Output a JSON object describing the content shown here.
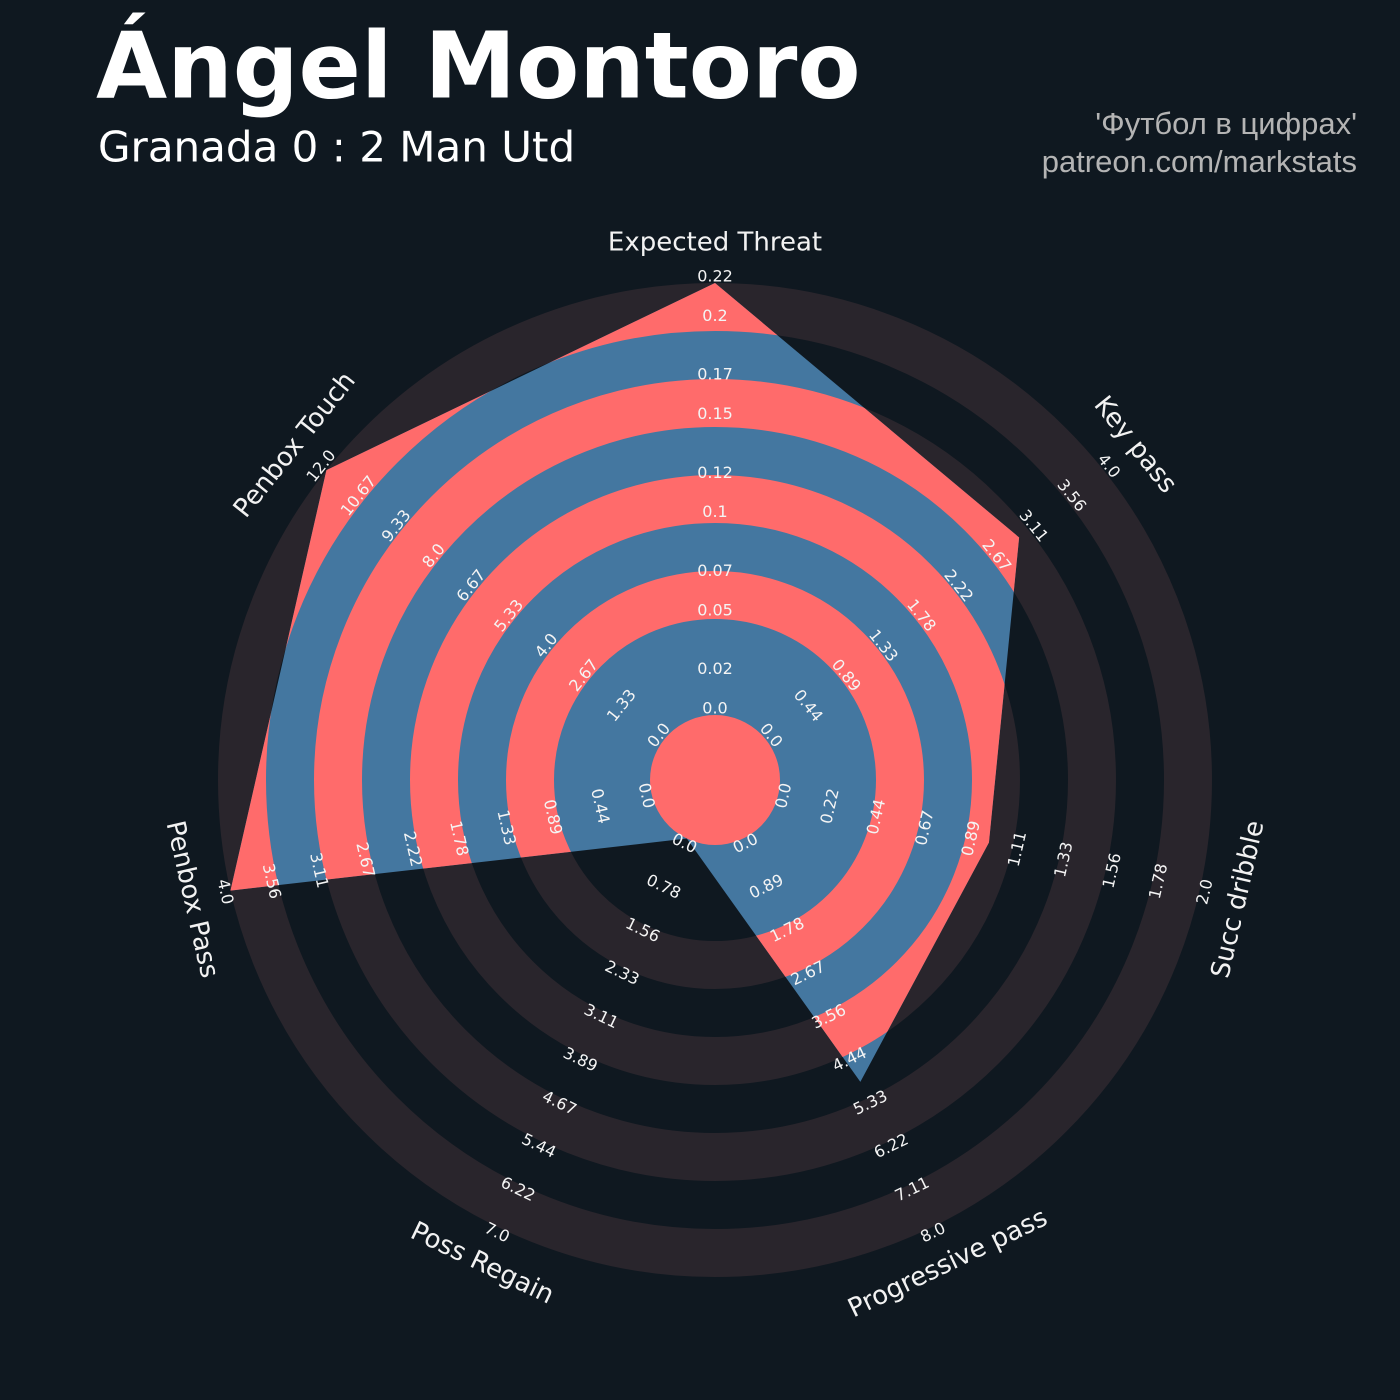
{
  "chart_data": {
    "type": "radar",
    "title": "Ángel Montoro",
    "subtitle": "Granada 0 : 2 Man Utd",
    "credits": [
      "'Футбол в цифрах'",
      "patreon.com/markstats"
    ],
    "categories": [
      "Expected Threat",
      "Key pass",
      "Succ dribble",
      "Progressive pass",
      "Poss Regain",
      "Penbox Pass",
      "Penbox Touch"
    ],
    "values": [
      0.22,
      3,
      1,
      5,
      0,
      4,
      12
    ],
    "color": "#4477a0",
    "ring_color": "#ff6b6b",
    "background_ring_color": "#29252c",
    "ranges": [
      [
        0,
        0.22
      ],
      [
        0,
        4
      ],
      [
        0,
        2
      ],
      [
        0,
        8
      ],
      [
        0,
        7
      ],
      [
        0,
        4
      ],
      [
        0,
        12
      ]
    ],
    "ticks": [
      [
        {
          "value": 0,
          "label": "0.0"
        },
        0.02,
        0.05,
        0.07,
        0.1,
        0.12,
        0.15,
        0.17,
        0.2,
        0.22
      ],
      [
        {
          "value": 0,
          "label": "0.0"
        },
        0.44,
        0.89,
        1.33,
        1.78,
        2.22,
        2.67,
        3.11,
        3.56,
        {
          "value": 4,
          "label": "4.0"
        }
      ],
      [
        {
          "value": 0,
          "label": "0.0"
        },
        0.22,
        0.44,
        0.67,
        0.89,
        1.11,
        1.33,
        1.56,
        1.78,
        {
          "value": 2,
          "label": "2.0"
        }
      ],
      [
        {
          "value": 0,
          "label": "0.0"
        },
        0.89,
        1.78,
        2.67,
        3.56,
        4.44,
        5.33,
        6.22,
        7.11,
        {
          "value": 8,
          "label": "8.0"
        }
      ],
      [
        {
          "value": 0,
          "label": "0.0"
        },
        0.78,
        1.56,
        2.33,
        3.11,
        3.89,
        4.67,
        5.44,
        6.22,
        {
          "value": 7,
          "label": "7.0"
        }
      ],
      [
        {
          "value": 0,
          "label": "0.0"
        },
        0.44,
        0.89,
        1.33,
        1.78,
        2.22,
        2.67,
        3.11,
        3.56,
        {
          "value": 4,
          "label": "4.0"
        }
      ],
      [
        {
          "value": 0,
          "label": "0.0"
        },
        1.33,
        2.67,
        {
          "value": 4,
          "label": "4.0"
        },
        5.33,
        6.67,
        {
          "value": 8,
          "label": "8.0"
        },
        9.33,
        10.67,
        {
          "value": 12,
          "label": "12.0"
        }
      ]
    ]
  }
}
